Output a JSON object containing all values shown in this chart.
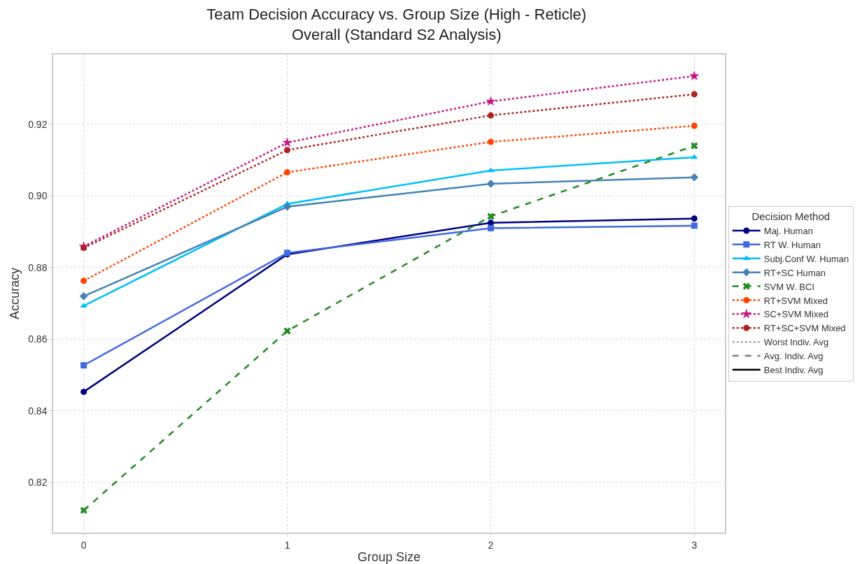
{
  "chart_data": {
    "type": "line",
    "title": "Team Decision Accuracy vs. Group Size (High - Reticle)\nOverall (Standard S2 Analysis)",
    "xlabel": "Group Size",
    "ylabel": "Accuracy",
    "legend_title": "Decision Method",
    "x": [
      0,
      1,
      2,
      3
    ],
    "xlim": [
      -0.15,
      3.15
    ],
    "xticks": [
      0,
      1,
      2,
      3
    ],
    "ylim": [
      0.806,
      0.9395
    ],
    "yticks": [
      {
        "value": 0.82,
        "label": "0.82"
      },
      {
        "value": 0.84,
        "label": "0.84"
      },
      {
        "value": 0.86,
        "label": "0.86"
      },
      {
        "value": 0.88,
        "label": "0.88"
      },
      {
        "value": 0.9,
        "label": "0.90"
      },
      {
        "value": 0.92,
        "label": "0.92"
      }
    ],
    "grid": true,
    "legend": "right",
    "series": [
      {
        "name": "Maj. Human",
        "color": "#000080",
        "marker": "circle",
        "line_style": "solid",
        "values": [
          0.8453,
          0.8837,
          0.8925,
          0.8937
        ]
      },
      {
        "name": "RT W. Human",
        "color": "#4169e1",
        "marker": "square",
        "line_style": "solid",
        "values": [
          0.8527,
          0.8841,
          0.891,
          0.8917
        ]
      },
      {
        "name": "Subj.Conf W. Human",
        "color": "#00bfff",
        "marker": "triangle",
        "line_style": "solid",
        "values": [
          0.8693,
          0.8978,
          0.9071,
          0.9108
        ]
      },
      {
        "name": "RT+SC Human",
        "color": "#4682b4",
        "marker": "diamond",
        "line_style": "solid",
        "values": [
          0.872,
          0.897,
          0.9034,
          0.9052
        ]
      },
      {
        "name": "SVM W. BCI",
        "color": "#228b22",
        "marker": "cross",
        "line_style": "dashed",
        "values": [
          0.8122,
          0.8623,
          0.8943,
          0.914
        ]
      },
      {
        "name": "RT+SVM Mixed",
        "color": "#ff4500",
        "marker": "circle",
        "line_style": "dotted",
        "values": [
          0.8763,
          0.9066,
          0.9151,
          0.9196
        ]
      },
      {
        "name": "SC+SVM Mixed",
        "color": "#c71585",
        "marker": "star",
        "line_style": "dotted",
        "values": [
          0.8859,
          0.9149,
          0.9264,
          0.9335
        ]
      },
      {
        "name": "RT+SC+SVM Mixed",
        "color": "#b22222",
        "marker": "circle",
        "line_style": "dotted",
        "values": [
          0.8855,
          0.9128,
          0.9225,
          0.9284
        ]
      },
      {
        "name": "Worst Indiv. Avg",
        "color": "#a9a9a9",
        "marker": "none",
        "line_style": "dotted",
        "values": [
          null,
          null,
          null,
          null
        ]
      },
      {
        "name": "Avg. Indiv. Avg",
        "color": "#808080",
        "marker": "none",
        "line_style": "dashed",
        "values": [
          null,
          null,
          null,
          null
        ]
      },
      {
        "name": "Best Indiv. Avg",
        "color": "#000000",
        "marker": "none",
        "line_style": "solid",
        "values": [
          null,
          null,
          null,
          null
        ]
      }
    ]
  }
}
